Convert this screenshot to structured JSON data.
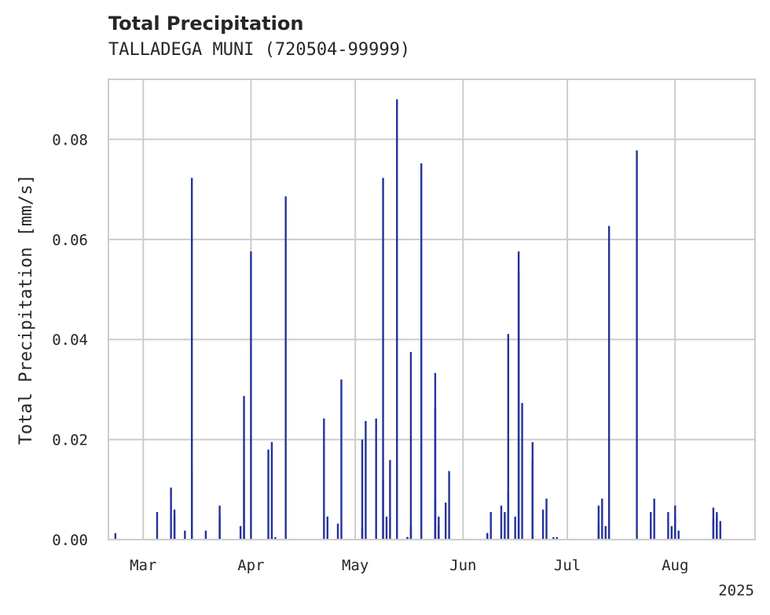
{
  "chart_data": {
    "type": "bar",
    "title": "Total Precipitation",
    "subtitle": "TALLADEGA MUNI (720504-99999)",
    "xlabel": "",
    "ylabel": "Total Precipitation [mm/s]",
    "ylim": [
      0,
      0.092
    ],
    "xlim": [
      "2025-02-19",
      "2025-08-24"
    ],
    "x_ticks": [
      {
        "date": "2025-03-01",
        "label": "Mar"
      },
      {
        "date": "2025-04-01",
        "label": "Apr"
      },
      {
        "date": "2025-05-01",
        "label": "May"
      },
      {
        "date": "2025-06-01",
        "label": "Jun"
      },
      {
        "date": "2025-07-01",
        "label": "Jul"
      },
      {
        "date": "2025-08-01",
        "label": "Aug"
      }
    ],
    "x_offset_label": "2025",
    "y_ticks": [
      {
        "value": 0.0,
        "label": "0.00"
      },
      {
        "value": 0.02,
        "label": "0.02"
      },
      {
        "value": 0.04,
        "label": "0.04"
      },
      {
        "value": 0.06,
        "label": "0.06"
      },
      {
        "value": 0.08,
        "label": "0.08"
      }
    ],
    "grid": true,
    "bar_color": "#23339a",
    "series": [
      {
        "x": [
          "2025-02-21",
          "2025-03-05",
          "2025-03-09",
          "2025-03-10",
          "2025-03-10",
          "2025-03-13",
          "2025-03-15",
          "2025-03-15",
          "2025-03-19",
          "2025-03-23",
          "2025-03-23",
          "2025-03-29",
          "2025-03-30",
          "2025-03-30",
          "2025-04-01",
          "2025-04-06",
          "2025-04-06",
          "2025-04-07",
          "2025-04-07",
          "2025-04-08",
          "2025-04-11",
          "2025-04-22",
          "2025-04-23",
          "2025-04-26",
          "2025-04-27",
          "2025-05-03",
          "2025-05-03",
          "2025-05-04",
          "2025-05-07",
          "2025-05-09",
          "2025-05-09",
          "2025-05-10",
          "2025-05-11",
          "2025-05-13",
          "2025-05-16",
          "2025-05-16",
          "2025-05-17",
          "2025-05-17",
          "2025-05-20",
          "2025-05-24",
          "2025-05-24",
          "2025-05-24",
          "2025-05-25",
          "2025-05-25",
          "2025-05-27",
          "2025-05-28",
          "2025-06-08",
          "2025-06-08",
          "2025-06-09",
          "2025-06-12",
          "2025-06-13",
          "2025-06-14",
          "2025-06-14",
          "2025-06-16",
          "2025-06-17",
          "2025-06-17",
          "2025-06-18",
          "2025-06-21",
          "2025-06-21",
          "2025-06-21",
          "2025-06-24",
          "2025-06-25",
          "2025-06-27",
          "2025-06-28",
          "2025-07-10",
          "2025-07-10",
          "2025-07-11",
          "2025-07-12",
          "2025-07-13",
          "2025-07-21",
          "2025-07-25",
          "2025-07-26",
          "2025-07-30",
          "2025-07-31",
          "2025-08-01",
          "2025-08-01",
          "2025-08-02",
          "2025-08-12",
          "2025-08-12",
          "2025-08-13",
          "2025-08-13",
          "2025-08-14"
        ],
        "values": [
          0.0013,
          0.0055,
          0.0104,
          0.006,
          0.0046,
          0.0018,
          0.0137,
          0.0723,
          0.0018,
          0.0046,
          0.0068,
          0.0027,
          0.0287,
          0.0119,
          0.0576,
          0.018,
          0.0005,
          0.0195,
          0.0005,
          0.0005,
          0.0686,
          0.0242,
          0.0046,
          0.0032,
          0.032,
          0.02,
          0.0023,
          0.0237,
          0.0242,
          0.0723,
          0.0119,
          0.0046,
          0.0159,
          0.088,
          0.0005,
          0.0005,
          0.0027,
          0.0375,
          0.0752,
          0.0333,
          0.0264,
          0.0082,
          0.0046,
          0.0027,
          0.0074,
          0.0137,
          0.0013,
          0.0013,
          0.0055,
          0.0068,
          0.0055,
          0.0411,
          0.0096,
          0.0046,
          0.0576,
          0.0536,
          0.0273,
          0.0195,
          0.0159,
          0.0013,
          0.006,
          0.0082,
          0.0005,
          0.0005,
          0.0068,
          0.0032,
          0.0082,
          0.0027,
          0.0627,
          0.0778,
          0.0055,
          0.0082,
          0.0055,
          0.0027,
          0.0068,
          0.0046,
          0.0018,
          0.0041,
          0.0064,
          0.0046,
          0.0055,
          0.0037
        ]
      }
    ]
  }
}
